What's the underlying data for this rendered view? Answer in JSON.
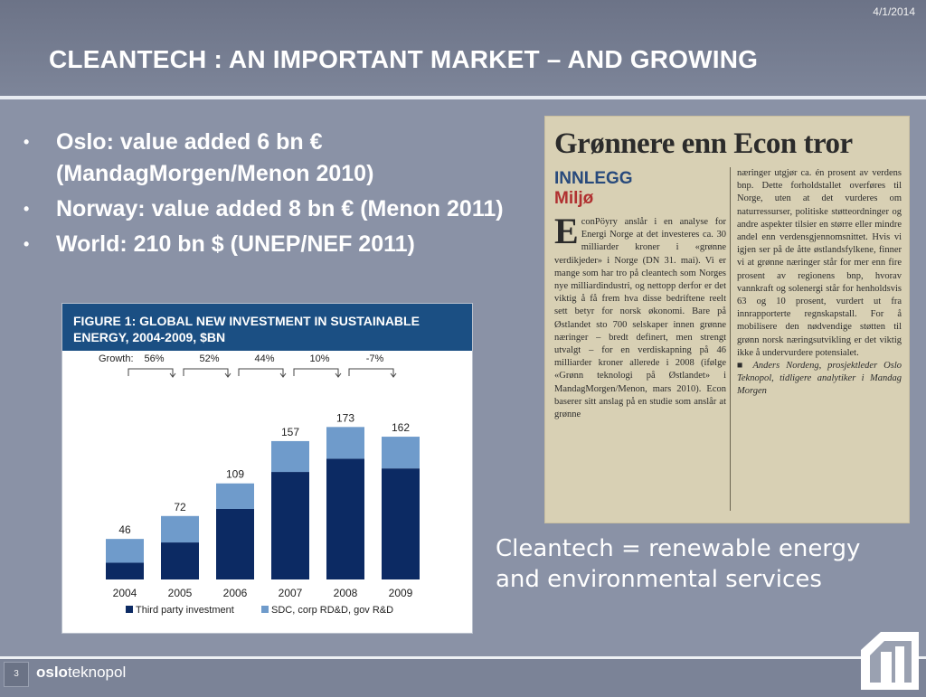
{
  "slide": {
    "date": "4/1/2014",
    "title": "CLEANTECH : AN IMPORTANT MARKET – AND GROWING",
    "page_number": "3",
    "brand_bold": "oslo",
    "brand_rest": "teknopol"
  },
  "bullets": [
    "Oslo: value added 6 bn € (MandagMorgen/Menon 2010)",
    "Norway: value added 8 bn € (Menon 2011)",
    "World: 210 bn $ (UNEP/NEF 2011)"
  ],
  "caption": "Cleantech = renewable energy and environmental services",
  "chart_data": {
    "type": "bar",
    "title": "FIGURE 1: GLOBAL NEW INVESTMENT IN SUSTAINABLE ENERGY, 2004-2009, $BN",
    "categories": [
      "2004",
      "2005",
      "2006",
      "2007",
      "2008",
      "2009"
    ],
    "totals": [
      46,
      72,
      109,
      157,
      173,
      162
    ],
    "series": [
      {
        "name": "Third party investment",
        "color": "#0c2a63",
        "values": [
          19,
          42,
          80,
          122,
          137,
          126
        ]
      },
      {
        "name": "SDC, corp RD&D, gov R&D",
        "color": "#6f9bcb",
        "values": [
          27,
          30,
          29,
          35,
          36,
          36
        ]
      }
    ],
    "growth_label": "Growth:",
    "growth": [
      "56%",
      "52%",
      "44%",
      "10%",
      "-7%"
    ],
    "ylim": [
      0,
      200
    ],
    "legend_position": "bottom"
  },
  "clipping": {
    "headline": "Grønnere enn Econ tror",
    "tag1": "INNLEGG",
    "tag2": "Miljø",
    "col1_drop": "E",
    "col1": "conPöyry anslår i en analyse for Energi Norge at det investeres ca. 30 milliarder kroner i «grønne verdikjeder» i Norge (DN 31. mai). Vi er mange som har tro på cleantech som Norges nye milliardindustri, og nettopp derfor er det viktig å få frem hva disse bedriftene reelt sett betyr for norsk økonomi. Bare på Østlandet sto 700 selskaper innen grønne næringer – bredt definert, men strengt utvalgt – for en verdiskapning på 46 milliarder kroner allerede i 2008 (ifølge «Grønn teknologi på Østlandet» i MandagMorgen/Menon, mars 2010). Econ baserer sitt anslag på en studie som anslår at grønne",
    "col2": "næringer utgjør ca. én prosent av verdens bnp. Dette forholdstallet overføres til Norge, uten at det vurderes om naturressurser, politiske støtteordninger og andre aspekter tilsier en større eller mindre andel enn verdensgjennomsnittet. Hvis vi igjen ser på de åtte østlandsfylkene, finner vi at grønne næringer står for mer enn fire prosent av regionens bnp, hvorav vannkraft og solenergi står for henholdsvis 63 og 10 prosent, vurdert ut fra innrapporterte regnskapstall. For å mobilisere den nødvendige støtten til grønn norsk næringsutvikling er det viktig ikke å undervurdere potensialet.",
    "signature": "■ Anders Nordeng, prosjektleder Oslo Teknopol, tidligere analytiker i Mandag Morgen"
  }
}
